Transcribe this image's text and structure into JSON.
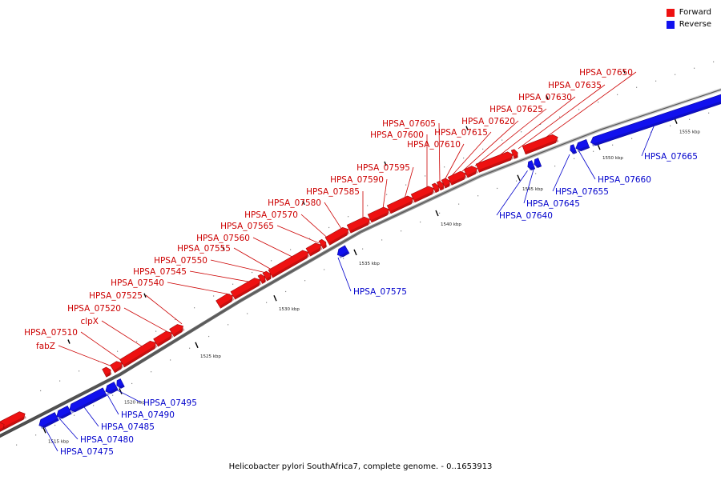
{
  "legend": {
    "forward_label": "Forward",
    "reverse_label": "Reverse",
    "forward_color": "#ee1111",
    "reverse_color": "#1111ee"
  },
  "caption": "Helicobacter pylori SouthAfrica7, complete genome. - 0..1653913",
  "ticks": [
    "1515 kbp",
    "1520 kbp",
    "1525 kbp",
    "1530 kbp",
    "1535 kbp",
    "1540 kbp",
    "1545 kbp",
    "1550 kbp",
    "1555 kbp"
  ],
  "genes": [
    {
      "name": "HPSA_07475",
      "strand": "reverse"
    },
    {
      "name": "HPSA_07480",
      "strand": "reverse"
    },
    {
      "name": "HPSA_07485",
      "strand": "reverse"
    },
    {
      "name": "HPSA_07490",
      "strand": "reverse"
    },
    {
      "name": "HPSA_07495",
      "strand": "reverse"
    },
    {
      "name": "fabZ",
      "strand": "forward"
    },
    {
      "name": "HPSA_07510",
      "strand": "forward"
    },
    {
      "name": "clpX",
      "strand": "forward"
    },
    {
      "name": "HPSA_07520",
      "strand": "forward"
    },
    {
      "name": "HPSA_07525",
      "strand": "forward"
    },
    {
      "name": "HPSA_07540",
      "strand": "forward"
    },
    {
      "name": "HPSA_07545",
      "strand": "forward"
    },
    {
      "name": "HPSA_07550",
      "strand": "forward"
    },
    {
      "name": "HPSA_07555",
      "strand": "forward"
    },
    {
      "name": "HPSA_07560",
      "strand": "forward"
    },
    {
      "name": "HPSA_07565",
      "strand": "forward"
    },
    {
      "name": "HPSA_07570",
      "strand": "forward"
    },
    {
      "name": "HPSA_07575",
      "strand": "reverse"
    },
    {
      "name": "HPSA_07580",
      "strand": "forward"
    },
    {
      "name": "HPSA_07585",
      "strand": "forward"
    },
    {
      "name": "HPSA_07590",
      "strand": "forward"
    },
    {
      "name": "HPSA_07595",
      "strand": "forward"
    },
    {
      "name": "HPSA_07600",
      "strand": "forward"
    },
    {
      "name": "HPSA_07605",
      "strand": "forward"
    },
    {
      "name": "HPSA_07610",
      "strand": "forward"
    },
    {
      "name": "HPSA_07615",
      "strand": "forward"
    },
    {
      "name": "HPSA_07620",
      "strand": "forward"
    },
    {
      "name": "HPSA_07625",
      "strand": "forward"
    },
    {
      "name": "HPSA_07630",
      "strand": "forward"
    },
    {
      "name": "HPSA_07635",
      "strand": "forward"
    },
    {
      "name": "HPSA_07640",
      "strand": "reverse"
    },
    {
      "name": "HPSA_07645",
      "strand": "reverse"
    },
    {
      "name": "HPSA_07650",
      "strand": "forward"
    },
    {
      "name": "HPSA_07655",
      "strand": "reverse"
    },
    {
      "name": "HPSA_07660",
      "strand": "reverse"
    },
    {
      "name": "HPSA_07665",
      "strand": "reverse"
    }
  ]
}
